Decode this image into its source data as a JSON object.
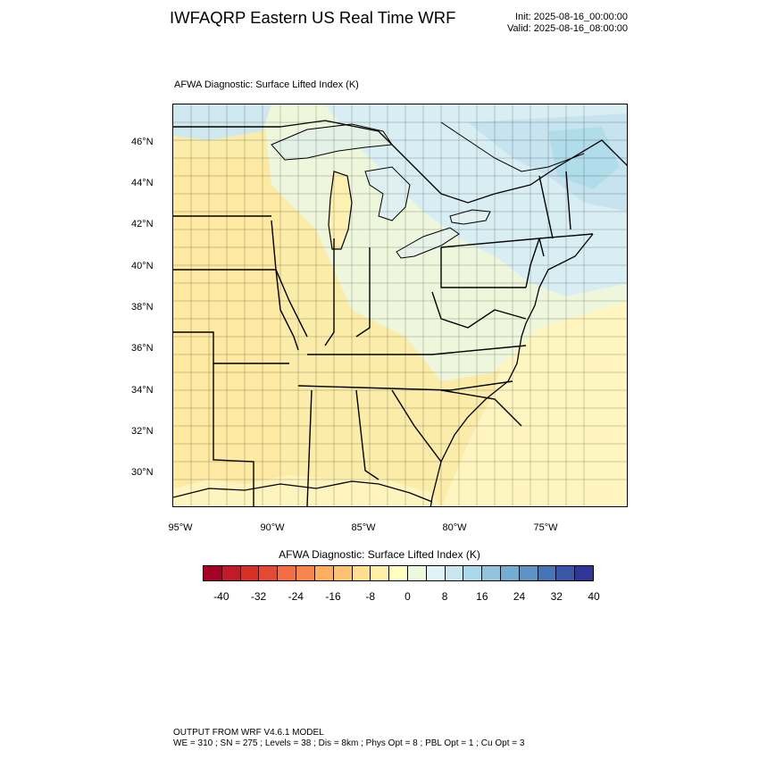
{
  "title": "IWFAQRP Eastern US Real Time WRF",
  "init_time": "Init: 2025-08-16_00:00:00",
  "valid_time": "Valid: 2025-08-16_08:00:00",
  "map_subtitle": "AFWA Diagnostic: Surface Lifted Index   (K)",
  "lat_ticks": [
    "46°N",
    "44°N",
    "42°N",
    "40°N",
    "38°N",
    "36°N",
    "34°N",
    "32°N",
    "30°N"
  ],
  "lon_ticks": [
    "95°W",
    "90°W",
    "85°W",
    "80°W",
    "75°W"
  ],
  "colorbar": {
    "title": "AFWA Diagnostic: Surface Lifted Index  (K)",
    "labels": [
      "-40",
      "-32",
      "-24",
      "-16",
      "-8",
      "0",
      "8",
      "16",
      "24",
      "32",
      "40"
    ],
    "colors": [
      "#a50026",
      "#c21b27",
      "#d73027",
      "#e34a33",
      "#f46d43",
      "#f7864e",
      "#fdae61",
      "#fdc272",
      "#fee090",
      "#ffefa8",
      "#ffffbf",
      "#eef8da",
      "#e0f3f8",
      "#c9e7f1",
      "#abd9e9",
      "#93c4de",
      "#74add1",
      "#5f93c2",
      "#4575b4",
      "#3b56a4",
      "#313695"
    ],
    "colors_note": "21 swatches from strongly negative (red) to strongly positive (blue)"
  },
  "map": {
    "field_colors": {
      "stable_light_blue": "#d6ecf4",
      "stable_blue": "#c6e3ef",
      "near_zero_pale": "#f2f8df",
      "slightly_negative_yellow": "#fdf1b5",
      "ocean_yellow": "#fef5c0",
      "land_mid_yellow": "#fbeca9"
    }
  },
  "footer": {
    "line1": "OUTPUT FROM WRF V4.6.1 MODEL",
    "line2": "WE = 310 ; SN = 275 ; Levels = 38 ; Dis = 8km ; Phys Opt = 8 ; PBL Opt = 1 ; Cu Opt = 3"
  }
}
